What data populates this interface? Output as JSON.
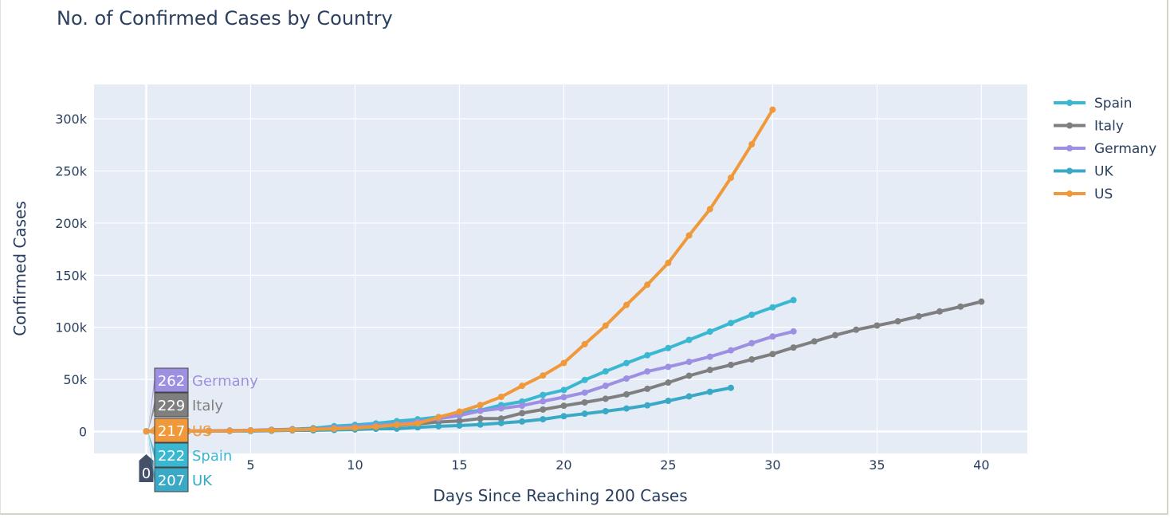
{
  "chart_data": {
    "type": "line",
    "title": "No. of Confirmed Cases by Country",
    "xlabel": "Days Since Reaching 200 Cases",
    "ylabel": "Confirmed Cases",
    "xlim": [
      -2.5,
      42.2
    ],
    "ylim": [
      -21000,
      333000
    ],
    "x_ticks": [
      5,
      10,
      15,
      20,
      25,
      30,
      35,
      40
    ],
    "y_ticks": [
      0,
      50000,
      100000,
      150000,
      200000,
      250000,
      300000
    ],
    "y_tick_labels": [
      "0",
      "50k",
      "100k",
      "150k",
      "200k",
      "250k",
      "300k"
    ],
    "grid": true,
    "legend_position": "right",
    "series": [
      {
        "name": "Spain",
        "color": "#3ab7d1",
        "x": [
          0,
          1,
          2,
          3,
          4,
          5,
          6,
          7,
          8,
          9,
          10,
          11,
          12,
          13,
          14,
          15,
          16,
          17,
          18,
          19,
          20,
          21,
          22,
          23,
          24,
          25,
          26,
          27,
          28,
          29,
          30,
          31
        ],
        "y": [
          222,
          259,
          400,
          500,
          673,
          1073,
          1695,
          2277,
          3146,
          5232,
          6391,
          7798,
          9942,
          11748,
          13910,
          17963,
          20410,
          25374,
          28768,
          35136,
          39885,
          49515,
          57786,
          65719,
          73235,
          80110,
          87956,
          95923,
          104118,
          112065,
          119199,
          126168
        ]
      },
      {
        "name": "Italy",
        "color": "#7f7f7f",
        "x": [
          0,
          1,
          2,
          3,
          4,
          5,
          6,
          7,
          8,
          9,
          10,
          11,
          12,
          13,
          14,
          15,
          16,
          17,
          18,
          19,
          20,
          21,
          22,
          23,
          24,
          25,
          26,
          27,
          28,
          29,
          30,
          31,
          32,
          33,
          34,
          35,
          36,
          37,
          38,
          39,
          40
        ],
        "y": [
          229,
          322,
          453,
          655,
          888,
          1128,
          1694,
          2036,
          2502,
          3089,
          3858,
          4636,
          5883,
          7375,
          9172,
          10149,
          12462,
          12462,
          17660,
          21157,
          24747,
          27980,
          31506,
          35713,
          41035,
          47021,
          53578,
          59138,
          63927,
          69176,
          74386,
          80589,
          86498,
          92472,
          97689,
          101739,
          105792,
          110574,
          115242,
          119827,
          124632
        ]
      },
      {
        "name": "Germany",
        "color": "#9d8fe2",
        "x": [
          0,
          1,
          2,
          3,
          4,
          5,
          6,
          7,
          8,
          9,
          10,
          11,
          12,
          13,
          14,
          15,
          16,
          17,
          18,
          19,
          20,
          21,
          22,
          23,
          24,
          25,
          26,
          27,
          28,
          29,
          30,
          31
        ],
        "y": [
          262,
          545,
          670,
          800,
          1040,
          1176,
          1457,
          1908,
          2078,
          3675,
          4585,
          5795,
          7272,
          9257,
          12327,
          15320,
          19848,
          22213,
          24873,
          29056,
          32986,
          37323,
          43938,
          50871,
          57695,
          62095,
          66885,
          71808,
          77872,
          84794,
          91159,
          96092
        ]
      },
      {
        "name": "UK",
        "color": "#3aa9c6",
        "x": [
          0,
          1,
          2,
          3,
          4,
          5,
          6,
          7,
          8,
          9,
          10,
          11,
          12,
          13,
          14,
          15,
          16,
          17,
          18,
          19,
          20,
          21,
          22,
          23,
          24,
          25,
          26,
          27,
          28
        ],
        "y": [
          207,
          273,
          321,
          382,
          456,
          459,
          802,
          1144,
          1145,
          1551,
          1960,
          2642,
          2716,
          4014,
          5067,
          5745,
          6726,
          8164,
          9640,
          11812,
          14745,
          17089,
          19522,
          22141,
          25150,
          29474,
          33718,
          38168,
          41903
        ]
      },
      {
        "name": "US",
        "color": "#f0993b",
        "x": [
          0,
          1,
          2,
          3,
          4,
          5,
          6,
          7,
          8,
          9,
          10,
          11,
          12,
          13,
          14,
          15,
          16,
          17,
          18,
          19,
          20,
          21,
          22,
          23,
          24,
          25,
          26,
          27,
          28,
          29,
          30
        ],
        "y": [
          217,
          262,
          402,
          518,
          583,
          959,
          1281,
          1663,
          2179,
          2726,
          3499,
          4632,
          6421,
          7786,
          13680,
          19101,
          25493,
          33276,
          43847,
          53740,
          65778,
          83836,
          101657,
          121478,
          140886,
          161807,
          188172,
          213372,
          243453,
          275586,
          308850
        ]
      }
    ],
    "hover_labels": [
      {
        "value": "262",
        "name": "Germany",
        "color": "#9d8fe2",
        "text_color": "#9d8fe2"
      },
      {
        "value": "229",
        "name": "Italy",
        "color": "#7f7f7f",
        "text_color": "#7f7f7f"
      },
      {
        "value": "217",
        "name": "US",
        "color": "#f0993b",
        "text_color": "#f0993b"
      },
      {
        "value": "222",
        "name": "Spain",
        "color": "#3ab7d1",
        "text_color": "#3ab7d1"
      },
      {
        "value": "207",
        "name": "UK",
        "color": "#3aa9c6",
        "text_color": "#3aa9c6"
      }
    ],
    "hover_x_label": "0"
  }
}
